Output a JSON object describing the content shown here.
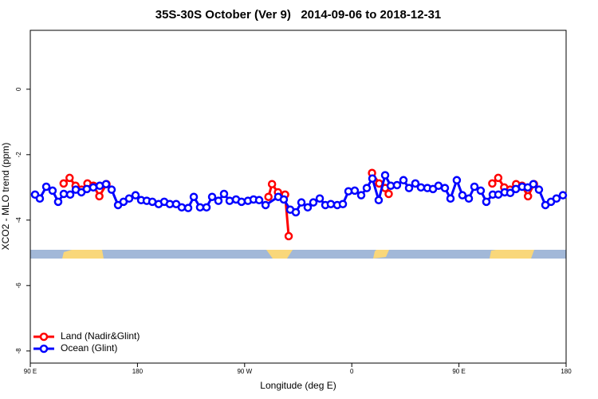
{
  "chart_data": {
    "type": "line",
    "title": "35S-30S October (Ver 9)   2014-09-06 to 2018-12-31",
    "x_label": "Longitude (deg E)",
    "y_label": "XCO2 - MLO trend (ppm)",
    "xlim": [
      90,
      540
    ],
    "xticks": [
      {
        "value": 90,
        "label": "90 E"
      },
      {
        "value": 180,
        "label": "180"
      },
      {
        "value": 270,
        "label": "90 W"
      },
      {
        "value": 360,
        "label": "0"
      },
      {
        "value": 450,
        "label": "90 E"
      },
      {
        "value": 540,
        "label": "180"
      }
    ],
    "ylim": [
      -8.37,
      1.8
    ],
    "yticks": [
      0,
      -2,
      -4,
      -6,
      -8
    ],
    "legend": "bottom-left",
    "series": [
      {
        "name": "Land (Nadir&Glint)",
        "color": "#ff0000",
        "x": [
          118,
          123,
          128,
          133,
          138,
          143,
          148,
          154,
          null,
          290,
          293,
          298,
          304,
          307,
          null,
          377,
          383,
          388,
          391,
          null,
          478,
          483,
          488,
          493,
          498,
          503,
          508,
          513
        ],
        "values": [
          -2.88,
          -2.71,
          -2.95,
          -3.07,
          -2.88,
          -2.95,
          -3.27,
          -2.9,
          null,
          -3.29,
          -2.9,
          -3.15,
          -3.22,
          -4.49,
          null,
          -2.56,
          -2.88,
          -3.02,
          -3.2,
          null,
          -2.88,
          -2.71,
          -3.0,
          -3.07,
          -2.9,
          -2.95,
          -3.27,
          -2.9
        ]
      },
      {
        "name": "Ocean (Glint)",
        "color": "#0000ff",
        "x": [
          94,
          98,
          103.4,
          108.7,
          113.4,
          118.1,
          123.5,
          128.2,
          132.9,
          137.5,
          142.9,
          148.3,
          153.6,
          158.3,
          163.7,
          168.3,
          173,
          178.4,
          183.1,
          187.8,
          192.5,
          197.8,
          202.5,
          207.2,
          212.5,
          217.2,
          222.6,
          227.3,
          232.6,
          238,
          242.7,
          248,
          252.7,
          257.4,
          262.8,
          267.4,
          272.8,
          277.5,
          282.2,
          287.6,
          298.2,
          302.9,
          308.3,
          313,
          317.7,
          323,
          327.7,
          333.1,
          337.8,
          342.4,
          347.8,
          352.5,
          357.2,
          362.5,
          367.9,
          372.6,
          377.3,
          382.6,
          388,
          392.7,
          398,
          403.4,
          408.1,
          413.4,
          418.1,
          423.5,
          428.2,
          432.8,
          438.2,
          442.9,
          448.2,
          452.9,
          458.3,
          463,
          468.3,
          473,
          478.4,
          483.1,
          488.4,
          493.1,
          497.8,
          503.1,
          507.8,
          512.5,
          517.2,
          522.6,
          527.3,
          531.9,
          537.3
        ],
        "values": [
          -3.22,
          -3.34,
          -2.98,
          -3.1,
          -3.44,
          -3.2,
          -3.22,
          -3.07,
          -3.15,
          -3.05,
          -3.0,
          -2.95,
          -2.9,
          -3.07,
          -3.54,
          -3.44,
          -3.34,
          -3.24,
          -3.39,
          -3.41,
          -3.44,
          -3.51,
          -3.44,
          -3.51,
          -3.51,
          -3.61,
          -3.63,
          -3.29,
          -3.61,
          -3.61,
          -3.29,
          -3.41,
          -3.2,
          -3.41,
          -3.37,
          -3.44,
          -3.41,
          -3.37,
          -3.39,
          -3.54,
          -3.29,
          -3.37,
          -3.68,
          -3.76,
          -3.46,
          -3.61,
          -3.46,
          -3.34,
          -3.54,
          -3.51,
          -3.54,
          -3.51,
          -3.12,
          -3.1,
          -3.24,
          -3.02,
          -2.73,
          -3.39,
          -2.63,
          -2.95,
          -2.93,
          -2.78,
          -3.02,
          -2.88,
          -3.0,
          -3.02,
          -3.05,
          -2.95,
          -3.02,
          -3.34,
          -2.78,
          -3.24,
          -3.34,
          -2.98,
          -3.1,
          -3.44,
          -3.22,
          -3.22,
          -3.15,
          -3.17,
          -3.05,
          -2.98,
          -3.0,
          -2.9,
          -3.07,
          -3.54,
          -3.44,
          -3.34,
          -3.24
        ]
      }
    ]
  }
}
